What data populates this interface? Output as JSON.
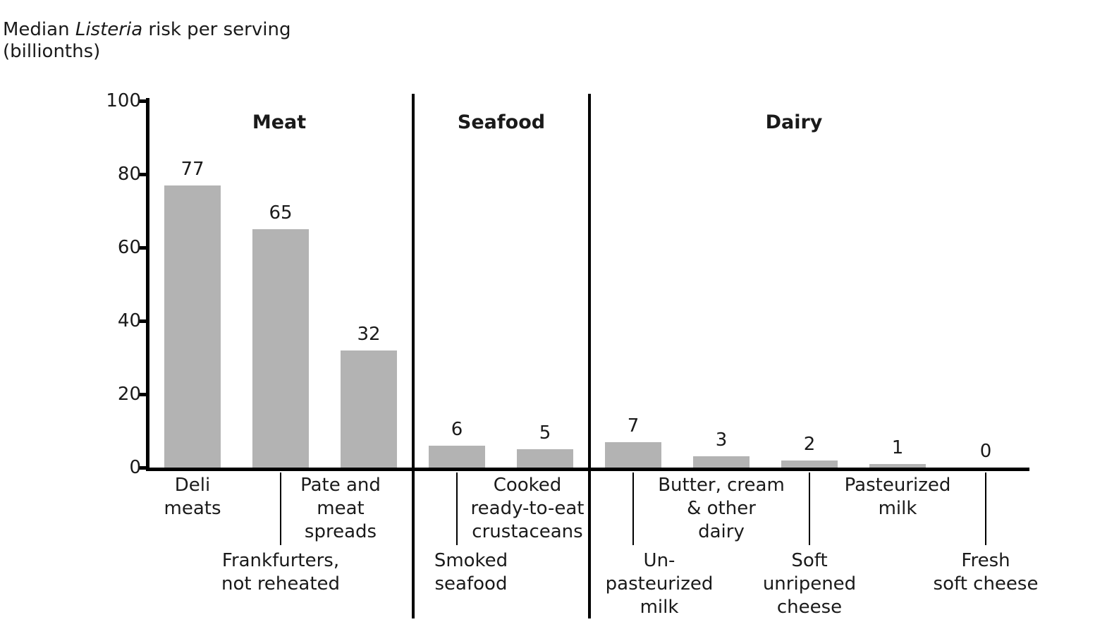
{
  "title": {
    "prefix": "Median ",
    "italic": "Listeria",
    "suffix": " risk per serving",
    "line2": "(billionths)"
  },
  "chart_data": {
    "type": "bar",
    "title": "Median Listeria risk per serving (billionths)",
    "ylim": [
      0,
      100
    ],
    "yticks": [
      0,
      20,
      40,
      60,
      80,
      100
    ],
    "grid": false,
    "bar_color": "#b3b3b3",
    "axis_color": "#000000",
    "text_color": "#1a1a1a",
    "groups": [
      {
        "label": "Meat",
        "items": [
          {
            "category": "Deli meats",
            "value": 77,
            "label_row": "upper",
            "label_lines": [
              "Deli",
              "meats"
            ]
          },
          {
            "category": "Frankfurters, not reheated",
            "value": 65,
            "label_row": "lower",
            "label_lines": [
              "Frankfurters,",
              "not reheated"
            ]
          },
          {
            "category": "Pate and meat spreads",
            "value": 32,
            "label_row": "upper",
            "label_lines": [
              "Pate and",
              "meat",
              "spreads"
            ]
          }
        ]
      },
      {
        "label": "Seafood",
        "items": [
          {
            "category": "Smoked seafood",
            "value": 6,
            "label_row": "lower",
            "label_lines": [
              "Smoked",
              "seafood"
            ]
          },
          {
            "category": "Cooked ready-to-eat crustaceans",
            "value": 5,
            "label_row": "upper",
            "label_lines": [
              "Cooked",
              "ready-to-eat",
              "crustaceans"
            ]
          }
        ]
      },
      {
        "label": "Dairy",
        "items": [
          {
            "category": "Un-pasteurized milk",
            "value": 7,
            "label_row": "lower",
            "label_lines": [
              "Un-",
              "pasteurized",
              "milk"
            ]
          },
          {
            "category": "Butter, cream & other dairy",
            "value": 3,
            "label_row": "upper",
            "label_lines": [
              "Butter, cream",
              "& other",
              "dairy"
            ]
          },
          {
            "category": "Soft unripened cheese",
            "value": 2,
            "label_row": "lower",
            "label_lines": [
              "Soft",
              "unripened",
              "cheese"
            ]
          },
          {
            "category": "Pasteurized milk",
            "value": 1,
            "label_row": "upper",
            "label_lines": [
              "Pasteurized",
              "milk"
            ]
          },
          {
            "category": "Fresh soft cheese",
            "value": 0,
            "label_row": "lower",
            "label_lines": [
              "Fresh",
              "soft cheese"
            ]
          }
        ]
      }
    ]
  }
}
